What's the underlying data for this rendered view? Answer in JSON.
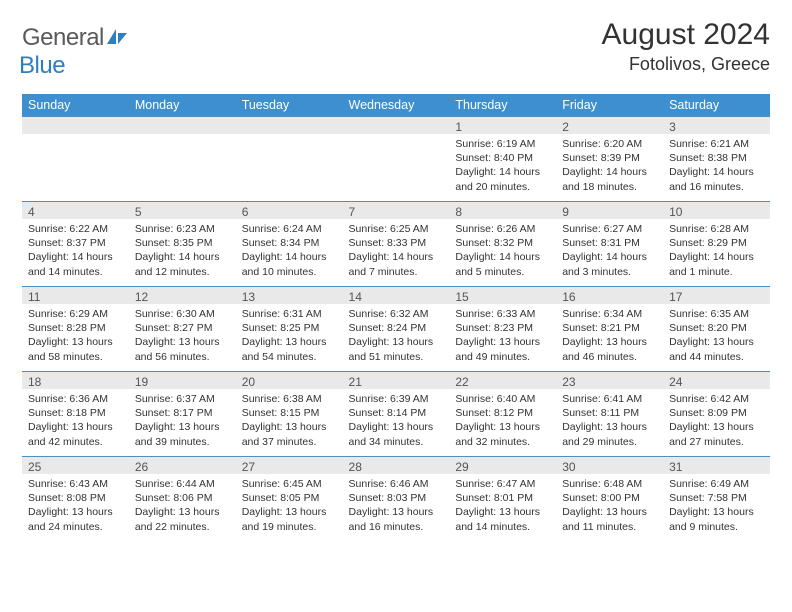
{
  "logo": {
    "word1": "General",
    "word2": "Blue",
    "accent": "#2f7fbf",
    "gray": "#5a5a5a"
  },
  "title": "August 2024",
  "location": "Fotolivos, Greece",
  "colors": {
    "header_bg": "#3d8fcf",
    "header_text": "#ffffff",
    "daynum_bg": "#e9e9e9",
    "row_divider": "#4a8fc7",
    "body_text": "#333333"
  },
  "weekdays": [
    "Sunday",
    "Monday",
    "Tuesday",
    "Wednesday",
    "Thursday",
    "Friday",
    "Saturday"
  ],
  "weeks": [
    [
      null,
      null,
      null,
      null,
      {
        "n": "1",
        "sr": "Sunrise: 6:19 AM",
        "ss": "Sunset: 8:40 PM",
        "dl": "Daylight: 14 hours and 20 minutes."
      },
      {
        "n": "2",
        "sr": "Sunrise: 6:20 AM",
        "ss": "Sunset: 8:39 PM",
        "dl": "Daylight: 14 hours and 18 minutes."
      },
      {
        "n": "3",
        "sr": "Sunrise: 6:21 AM",
        "ss": "Sunset: 8:38 PM",
        "dl": "Daylight: 14 hours and 16 minutes."
      }
    ],
    [
      {
        "n": "4",
        "sr": "Sunrise: 6:22 AM",
        "ss": "Sunset: 8:37 PM",
        "dl": "Daylight: 14 hours and 14 minutes."
      },
      {
        "n": "5",
        "sr": "Sunrise: 6:23 AM",
        "ss": "Sunset: 8:35 PM",
        "dl": "Daylight: 14 hours and 12 minutes."
      },
      {
        "n": "6",
        "sr": "Sunrise: 6:24 AM",
        "ss": "Sunset: 8:34 PM",
        "dl": "Daylight: 14 hours and 10 minutes."
      },
      {
        "n": "7",
        "sr": "Sunrise: 6:25 AM",
        "ss": "Sunset: 8:33 PM",
        "dl": "Daylight: 14 hours and 7 minutes."
      },
      {
        "n": "8",
        "sr": "Sunrise: 6:26 AM",
        "ss": "Sunset: 8:32 PM",
        "dl": "Daylight: 14 hours and 5 minutes."
      },
      {
        "n": "9",
        "sr": "Sunrise: 6:27 AM",
        "ss": "Sunset: 8:31 PM",
        "dl": "Daylight: 14 hours and 3 minutes."
      },
      {
        "n": "10",
        "sr": "Sunrise: 6:28 AM",
        "ss": "Sunset: 8:29 PM",
        "dl": "Daylight: 14 hours and 1 minute."
      }
    ],
    [
      {
        "n": "11",
        "sr": "Sunrise: 6:29 AM",
        "ss": "Sunset: 8:28 PM",
        "dl": "Daylight: 13 hours and 58 minutes."
      },
      {
        "n": "12",
        "sr": "Sunrise: 6:30 AM",
        "ss": "Sunset: 8:27 PM",
        "dl": "Daylight: 13 hours and 56 minutes."
      },
      {
        "n": "13",
        "sr": "Sunrise: 6:31 AM",
        "ss": "Sunset: 8:25 PM",
        "dl": "Daylight: 13 hours and 54 minutes."
      },
      {
        "n": "14",
        "sr": "Sunrise: 6:32 AM",
        "ss": "Sunset: 8:24 PM",
        "dl": "Daylight: 13 hours and 51 minutes."
      },
      {
        "n": "15",
        "sr": "Sunrise: 6:33 AM",
        "ss": "Sunset: 8:23 PM",
        "dl": "Daylight: 13 hours and 49 minutes."
      },
      {
        "n": "16",
        "sr": "Sunrise: 6:34 AM",
        "ss": "Sunset: 8:21 PM",
        "dl": "Daylight: 13 hours and 46 minutes."
      },
      {
        "n": "17",
        "sr": "Sunrise: 6:35 AM",
        "ss": "Sunset: 8:20 PM",
        "dl": "Daylight: 13 hours and 44 minutes."
      }
    ],
    [
      {
        "n": "18",
        "sr": "Sunrise: 6:36 AM",
        "ss": "Sunset: 8:18 PM",
        "dl": "Daylight: 13 hours and 42 minutes."
      },
      {
        "n": "19",
        "sr": "Sunrise: 6:37 AM",
        "ss": "Sunset: 8:17 PM",
        "dl": "Daylight: 13 hours and 39 minutes."
      },
      {
        "n": "20",
        "sr": "Sunrise: 6:38 AM",
        "ss": "Sunset: 8:15 PM",
        "dl": "Daylight: 13 hours and 37 minutes."
      },
      {
        "n": "21",
        "sr": "Sunrise: 6:39 AM",
        "ss": "Sunset: 8:14 PM",
        "dl": "Daylight: 13 hours and 34 minutes."
      },
      {
        "n": "22",
        "sr": "Sunrise: 6:40 AM",
        "ss": "Sunset: 8:12 PM",
        "dl": "Daylight: 13 hours and 32 minutes."
      },
      {
        "n": "23",
        "sr": "Sunrise: 6:41 AM",
        "ss": "Sunset: 8:11 PM",
        "dl": "Daylight: 13 hours and 29 minutes."
      },
      {
        "n": "24",
        "sr": "Sunrise: 6:42 AM",
        "ss": "Sunset: 8:09 PM",
        "dl": "Daylight: 13 hours and 27 minutes."
      }
    ],
    [
      {
        "n": "25",
        "sr": "Sunrise: 6:43 AM",
        "ss": "Sunset: 8:08 PM",
        "dl": "Daylight: 13 hours and 24 minutes."
      },
      {
        "n": "26",
        "sr": "Sunrise: 6:44 AM",
        "ss": "Sunset: 8:06 PM",
        "dl": "Daylight: 13 hours and 22 minutes."
      },
      {
        "n": "27",
        "sr": "Sunrise: 6:45 AM",
        "ss": "Sunset: 8:05 PM",
        "dl": "Daylight: 13 hours and 19 minutes."
      },
      {
        "n": "28",
        "sr": "Sunrise: 6:46 AM",
        "ss": "Sunset: 8:03 PM",
        "dl": "Daylight: 13 hours and 16 minutes."
      },
      {
        "n": "29",
        "sr": "Sunrise: 6:47 AM",
        "ss": "Sunset: 8:01 PM",
        "dl": "Daylight: 13 hours and 14 minutes."
      },
      {
        "n": "30",
        "sr": "Sunrise: 6:48 AM",
        "ss": "Sunset: 8:00 PM",
        "dl": "Daylight: 13 hours and 11 minutes."
      },
      {
        "n": "31",
        "sr": "Sunrise: 6:49 AM",
        "ss": "Sunset: 7:58 PM",
        "dl": "Daylight: 13 hours and 9 minutes."
      }
    ]
  ]
}
